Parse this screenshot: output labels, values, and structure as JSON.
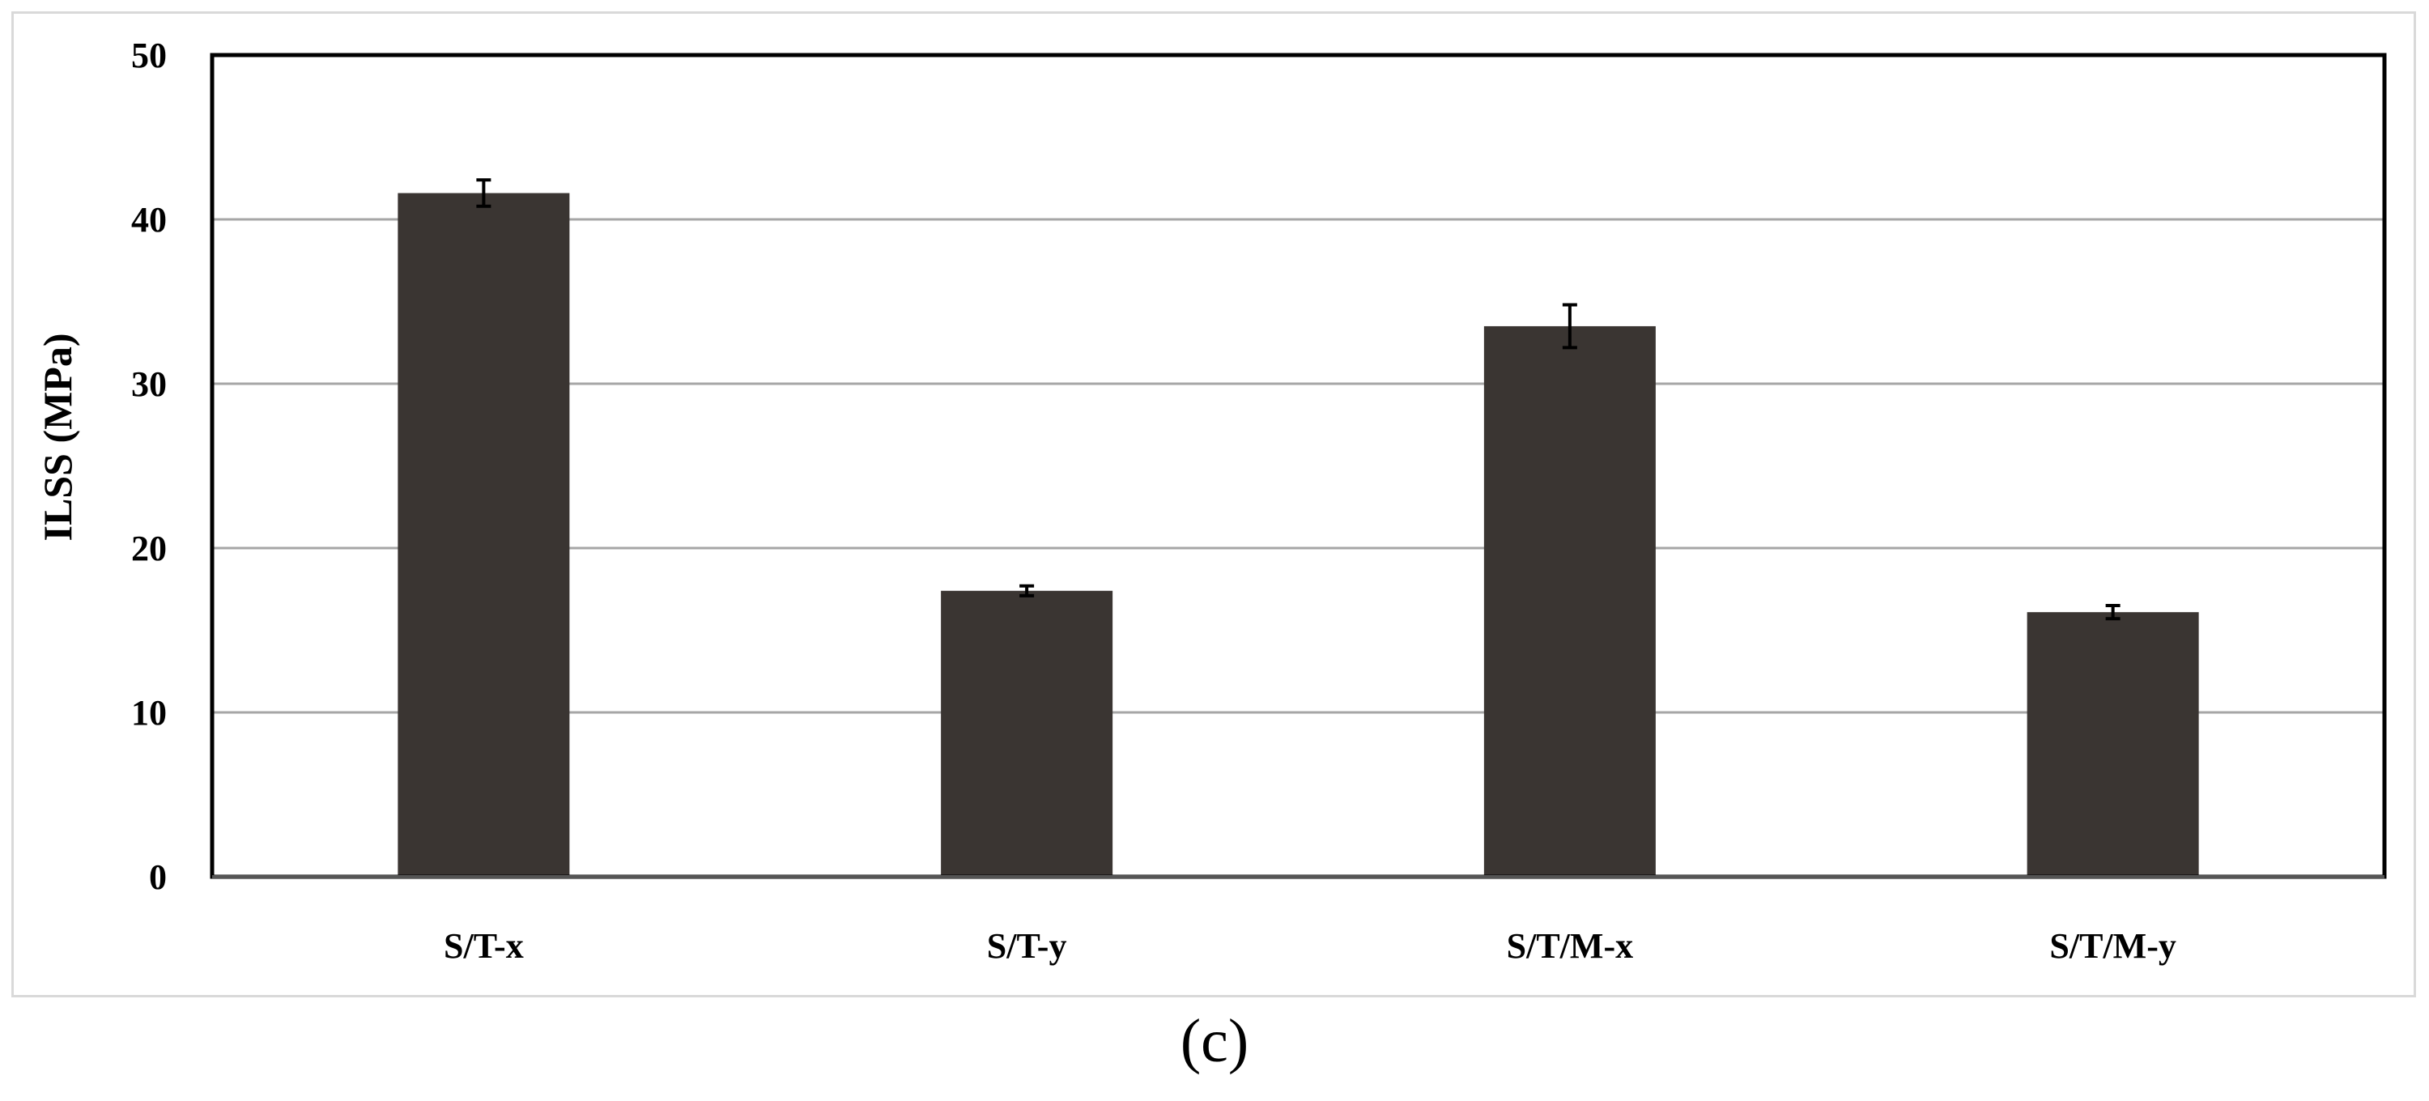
{
  "caption": "(c)",
  "chart_data": {
    "type": "bar",
    "title": "",
    "xlabel": "",
    "ylabel": "ILSS (MPa)",
    "categories": [
      "S/T-x",
      "S/T-y",
      "S/T/M-x",
      "S/T/M-y"
    ],
    "values": [
      41.6,
      17.4,
      33.5,
      16.1
    ],
    "error": [
      0.8,
      0.3,
      1.3,
      0.4
    ],
    "ylim": [
      0,
      50
    ],
    "yticks": [
      0,
      10,
      20,
      30,
      40,
      50
    ],
    "grid": true,
    "legend": "none",
    "colors": {
      "bar": "#3a3532",
      "grid": "#a6a6a6",
      "axis": "#000000",
      "frame": "#d9d9d9"
    }
  }
}
